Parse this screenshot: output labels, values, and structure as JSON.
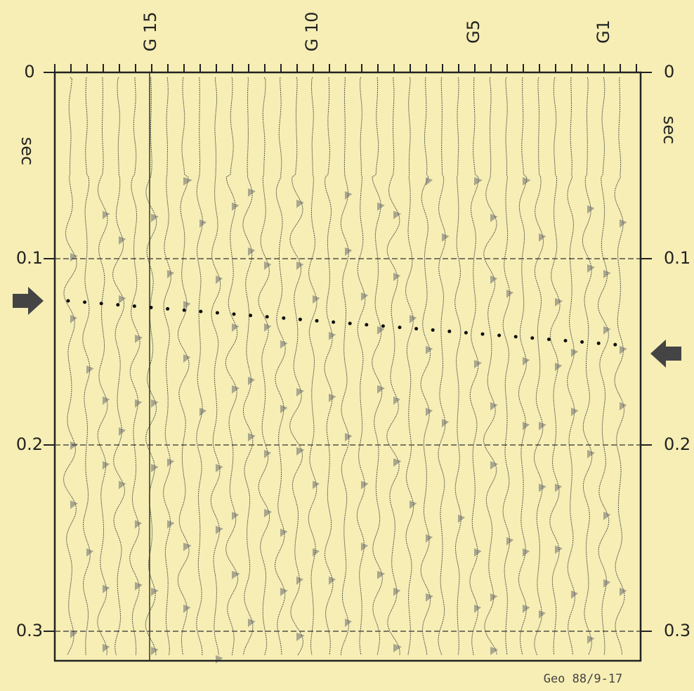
{
  "top_labels": [
    "G 15",
    "G 10",
    "G5",
    "G1"
  ],
  "left_axis": {
    "label": "sec",
    "ticks": [
      0,
      0.1,
      0.2,
      0.3
    ]
  },
  "right_axis": {
    "label": "sec",
    "ticks": [
      0,
      0.1,
      0.2,
      0.3
    ]
  },
  "footer": "Geo 88/9-17"
}
